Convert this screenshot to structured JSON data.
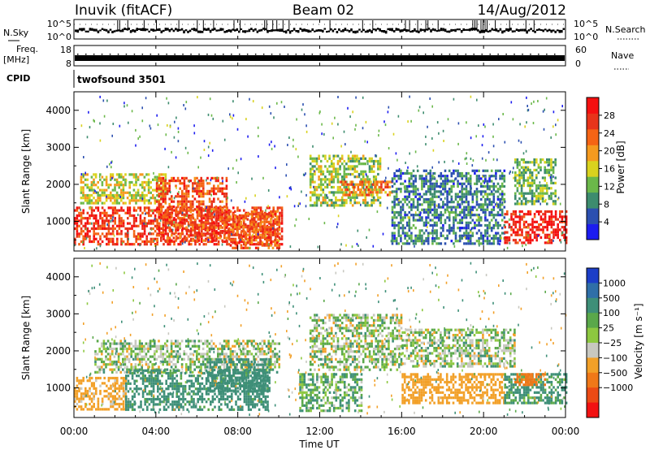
{
  "header": {
    "station": "Inuvik (fitACF)",
    "beam": "Beam 02",
    "date": "14/Aug/2012"
  },
  "top_panels": {
    "nsky_label": "N.Sky",
    "nsky_ticks": [
      "10^5",
      "10^0"
    ],
    "nsearch_label": "N.Search",
    "nsearch_ticks": [
      "10^5",
      "10^0"
    ],
    "freq_label": "Freq.",
    "freq_unit": "[MHz]",
    "freq_ticks": [
      "18",
      "8"
    ],
    "nave_label": "Nave",
    "nave_ticks": [
      "60",
      "0"
    ],
    "cpid_label": "CPID",
    "cpid_value": "twofsound 3501"
  },
  "colors": {
    "power_scale": [
      "#1c1cf0",
      "#2b4fb0",
      "#3d8c6e",
      "#6bb84a",
      "#d9d21e",
      "#f59a1e",
      "#f56414",
      "#e8341a",
      "#f51010"
    ],
    "velocity_scale": [
      "#1c3ec8",
      "#2f6fa8",
      "#3e8f78",
      "#5aa84a",
      "#8dc840",
      "#c8c8c0",
      "#f2a028",
      "#f07818",
      "#ec4a14",
      "#f21212"
    ],
    "velocity_grey": "#c8c8c0"
  },
  "chart_data": [
    {
      "type": "heatmap",
      "panel": "power",
      "ylabel": "Slant Range [km]",
      "xlabel": "",
      "y_ticks": [
        1000,
        2000,
        3000,
        4000
      ],
      "ylim": [
        200,
        4500
      ],
      "x_ticks": [
        "00:00",
        "04:00",
        "08:00",
        "12:00",
        "16:00",
        "20:00",
        "00:00"
      ],
      "xlim_hours": [
        0,
        24
      ],
      "colorbar": {
        "label": "Power [dB]",
        "ticks": [
          4,
          8,
          12,
          16,
          20,
          24,
          28
        ],
        "range": [
          0,
          32
        ]
      },
      "regions": [
        {
          "t0": 0.0,
          "t1": 10.2,
          "r0": 350,
          "r1": 1400,
          "level": 27
        },
        {
          "t0": 0.3,
          "t1": 4.5,
          "r0": 1500,
          "r1": 2300,
          "level": 16
        },
        {
          "t0": 4.0,
          "t1": 7.5,
          "r0": 500,
          "r1": 2200,
          "level": 25
        },
        {
          "t0": 7.5,
          "t1": 10.0,
          "r0": 300,
          "r1": 1300,
          "level": 24
        },
        {
          "t0": 11.5,
          "t1": 15.0,
          "r0": 1400,
          "r1": 2800,
          "level": 14
        },
        {
          "t0": 13.0,
          "t1": 15.5,
          "r0": 1700,
          "r1": 2100,
          "level": 22
        },
        {
          "t0": 15.5,
          "t1": 21.0,
          "r0": 400,
          "r1": 2400,
          "level": 8
        },
        {
          "t0": 21.0,
          "t1": 24.0,
          "r0": 400,
          "r1": 1300,
          "level": 29
        },
        {
          "t0": 21.5,
          "t1": 23.5,
          "r0": 1500,
          "r1": 2700,
          "level": 12
        }
      ]
    },
    {
      "type": "heatmap",
      "panel": "velocity",
      "ylabel": "Slant Range [km]",
      "xlabel": "Time UT",
      "y_ticks": [
        1000,
        2000,
        3000,
        4000
      ],
      "ylim": [
        200,
        4500
      ],
      "x_ticks": [
        "00:00",
        "04:00",
        "08:00",
        "12:00",
        "16:00",
        "20:00",
        "00:00"
      ],
      "xlim_hours": [
        0,
        24
      ],
      "colorbar": {
        "label": "Velocity [m s⁻¹]",
        "ticks": [
          "1000",
          "500",
          "100",
          "25",
          "−25",
          "−100",
          "−500",
          "−1000"
        ]
      },
      "regions": [
        {
          "t0": 0.0,
          "t1": 2.5,
          "r0": 400,
          "r1": 1300,
          "level": -200
        },
        {
          "t0": 1.0,
          "t1": 10.0,
          "r0": 1400,
          "r1": 2300,
          "level": 0
        },
        {
          "t0": 2.5,
          "t1": 9.5,
          "r0": 400,
          "r1": 1500,
          "level": 200
        },
        {
          "t0": 6.5,
          "t1": 9.5,
          "r0": 900,
          "r1": 1800,
          "level": 300
        },
        {
          "t0": 11.5,
          "t1": 16.0,
          "r0": 1500,
          "r1": 3000,
          "level": 0
        },
        {
          "t0": 11.0,
          "t1": 14.0,
          "r0": 400,
          "r1": 1400,
          "level": 80
        },
        {
          "t0": 16.0,
          "t1": 21.0,
          "r0": 600,
          "r1": 1400,
          "level": -250
        },
        {
          "t0": 16.0,
          "t1": 21.5,
          "r0": 1600,
          "r1": 2600,
          "level": 0
        },
        {
          "t0": 21.0,
          "t1": 24.0,
          "r0": 600,
          "r1": 1400,
          "level": 150
        },
        {
          "t0": 21.5,
          "t1": 23.0,
          "r0": 1100,
          "r1": 1400,
          "level": -600
        }
      ]
    }
  ]
}
